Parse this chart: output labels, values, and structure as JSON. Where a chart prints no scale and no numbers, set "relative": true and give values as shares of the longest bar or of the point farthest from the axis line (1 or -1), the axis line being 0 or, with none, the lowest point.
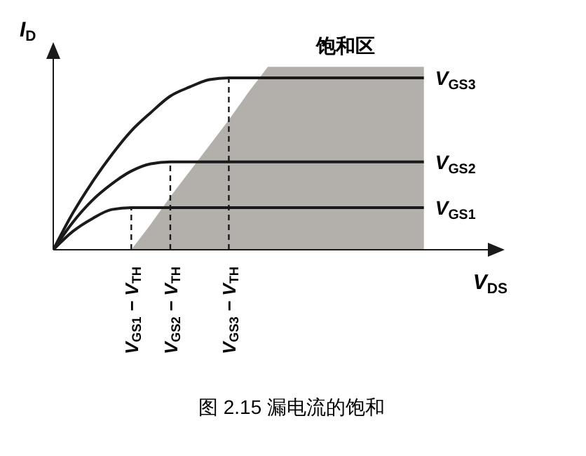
{
  "chart_data": {
    "type": "line",
    "title": "图 2.15 漏电流的饱和",
    "xlabel": "V$_{DS}$",
    "ylabel": "I$_{D}$",
    "relative": true,
    "marker": "none",
    "categories": [
      null,
      null,
      null,
      null,
      "V$_{GS1}$ − V$_{TH}$",
      null,
      "V$_{GS2}$ − V$_{TH}$",
      null,
      null,
      "V$_{GS3}$ − V$_{TH}$",
      null,
      null,
      null,
      null,
      null,
      null,
      null,
      null,
      null,
      null,
      null,
      null,
      null,
      null
    ],
    "annotations": [
      "饱和区"
    ],
    "ref_lines": [
      {
        "axis": "x",
        "value": "V$_{GS1}$ − V$_{TH}$",
        "line_style": "dashed",
        "color": "#1a1a1a"
      },
      {
        "axis": "x",
        "value": "V$_{GS2}$ − V$_{TH}$",
        "line_style": "dashed",
        "color": "#1a1a1a"
      },
      {
        "axis": "x",
        "value": "V$_{GS3}$ − V$_{TH}$",
        "line_style": "dashed",
        "color": "#1a1a1a"
      }
    ],
    "series": [
      {
        "type": "area",
        "color": "#b3afaa",
        "values": [
          null,
          null,
          null,
          null,
          0,
          0.14,
          0.29,
          0.43,
          0.57,
          0.71,
          0.86,
          1,
          1,
          1,
          1,
          1,
          1,
          1,
          1,
          1,
          null,
          null,
          null,
          null
        ]
      },
      {
        "name": "V$_{GS1}$",
        "color": "#1a1a1a",
        "line_style": "solid",
        "values": [
          0,
          0.1,
          0.17,
          0.22,
          0.23,
          0.23,
          0.23,
          0.23,
          0.23,
          0.23,
          0.23,
          0.23,
          0.23,
          0.23,
          0.23,
          0.23,
          0.23,
          0.23,
          0.23,
          0.23,
          null,
          null,
          null,
          null
        ]
      },
      {
        "name": "V$_{GS2}$",
        "color": "#1a1a1a",
        "line_style": "solid",
        "values": [
          0,
          0.15,
          0.27,
          0.36,
          0.43,
          0.47,
          0.48,
          0.48,
          0.48,
          0.48,
          0.48,
          0.48,
          0.48,
          0.48,
          0.48,
          0.48,
          0.48,
          0.48,
          0.48,
          0.48,
          null,
          null,
          null,
          null
        ]
      },
      {
        "name": "V$_{GS3}$",
        "color": "#1a1a1a",
        "line_style": "solid",
        "values": [
          0,
          0.2,
          0.37,
          0.52,
          0.65,
          0.75,
          0.84,
          0.89,
          0.93,
          0.94,
          0.94,
          0.94,
          0.94,
          0.94,
          0.94,
          0.94,
          0.94,
          0.94,
          0.94,
          0.94,
          null,
          null,
          null,
          null
        ]
      }
    ]
  }
}
